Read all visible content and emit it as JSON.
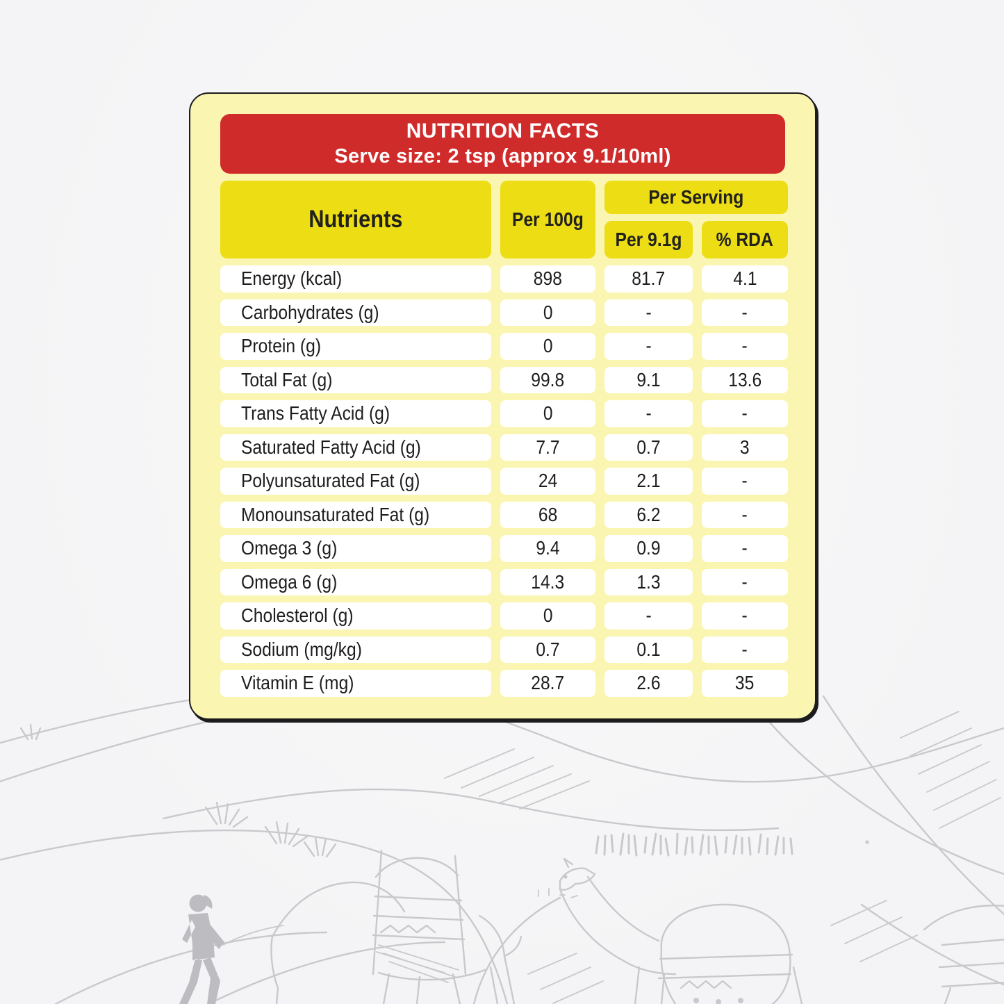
{
  "page": {
    "background_sketch": "light-gray line-art of desert dunes with a camel caravan and a walking handler"
  },
  "header": {
    "title": "NUTRITION FACTS",
    "subtitle": "Serve size: 2 tsp (approx 9.1/10ml)"
  },
  "table": {
    "columns": {
      "nutrients": "Nutrients",
      "per_100g": "Per 100g",
      "per_serving": "Per Serving",
      "per_9_1g": "Per 9.1g",
      "percent_rda": "% RDA"
    },
    "rows": [
      {
        "nutrient": "Energy (kcal)",
        "per_100g": "898",
        "per_9_1g": "81.7",
        "percent_rda": "4.1"
      },
      {
        "nutrient": "Carbohydrates (g)",
        "per_100g": "0",
        "per_9_1g": "-",
        "percent_rda": "-"
      },
      {
        "nutrient": "Protein (g)",
        "per_100g": "0",
        "per_9_1g": "-",
        "percent_rda": "-"
      },
      {
        "nutrient": "Total Fat (g)",
        "per_100g": "99.8",
        "per_9_1g": "9.1",
        "percent_rda": "13.6"
      },
      {
        "nutrient": "Trans Fatty Acid (g)",
        "per_100g": "0",
        "per_9_1g": "-",
        "percent_rda": "-"
      },
      {
        "nutrient": "Saturated Fatty Acid (g)",
        "per_100g": "7.7",
        "per_9_1g": "0.7",
        "percent_rda": "3"
      },
      {
        "nutrient": "Polyunsaturated Fat (g)",
        "per_100g": "24",
        "per_9_1g": "2.1",
        "percent_rda": "-"
      },
      {
        "nutrient": "Monounsaturated Fat (g)",
        "per_100g": "68",
        "per_9_1g": "6.2",
        "percent_rda": "-"
      },
      {
        "nutrient": "Omega 3 (g)",
        "per_100g": "9.4",
        "per_9_1g": "0.9",
        "percent_rda": "-"
      },
      {
        "nutrient": "Omega 6 (g)",
        "per_100g": "14.3",
        "per_9_1g": "1.3",
        "percent_rda": "-"
      },
      {
        "nutrient": "Cholesterol (g)",
        "per_100g": "0",
        "per_9_1g": "-",
        "percent_rda": "-"
      },
      {
        "nutrient": "Sodium (mg/kg)",
        "per_100g": "0.7",
        "per_9_1g": "0.1",
        "percent_rda": "-"
      },
      {
        "nutrient": "Vitamin E (mg)",
        "per_100g": "28.7",
        "per_9_1g": "2.6",
        "percent_rda": "35"
      }
    ]
  },
  "colors": {
    "page_bg": "#f4f4f6",
    "card_yellow": "#faf6b2",
    "header_red": "#d02b2b",
    "header_yellow": "#eddd14",
    "cell_white": "#ffffff",
    "text_dark": "#1d1d1f",
    "text_on_yellow": "#21211d",
    "sketch_gray": "#c9c9cd",
    "sketch_fill": "#bcbcc1"
  }
}
